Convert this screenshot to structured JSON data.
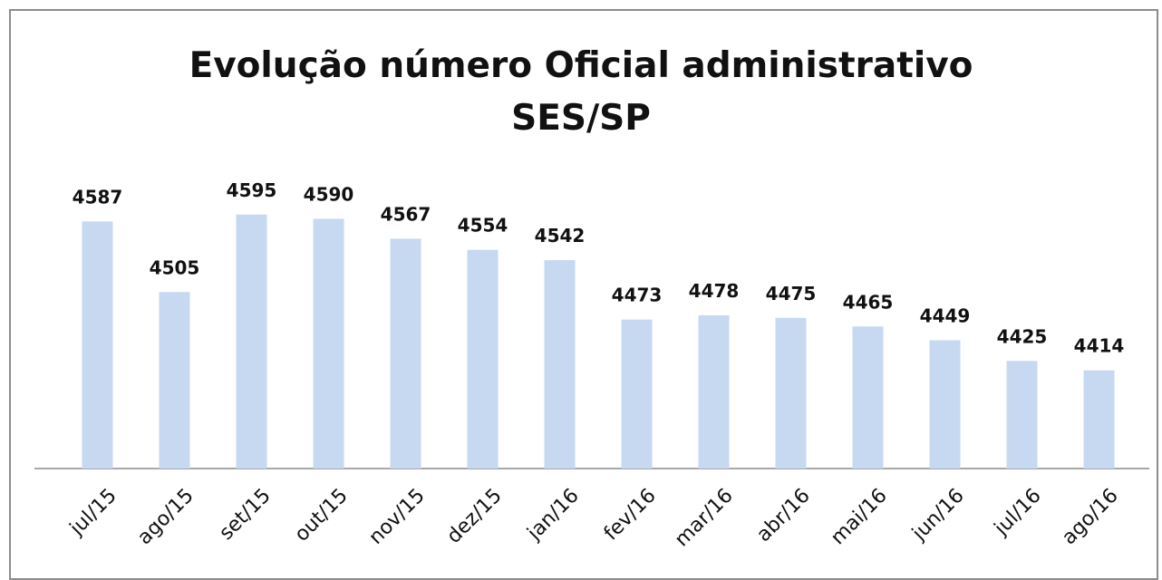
{
  "chart_data": {
    "type": "bar",
    "title": "Evolução número Oficial administrativo SES/SP",
    "categories": [
      "jul/15",
      "ago/15",
      "set/15",
      "out/15",
      "nov/15",
      "dez/15",
      "jan/16",
      "fev/16",
      "mar/16",
      "abr/16",
      "mai/16",
      "jun/16",
      "jul/16",
      "ago/16"
    ],
    "values": [
      4587,
      4505,
      4595,
      4590,
      4567,
      4554,
      4542,
      4473,
      4478,
      4475,
      4465,
      4449,
      4425,
      4414
    ],
    "color": "#c6d9f1",
    "ylim": [
      4300,
      4650
    ]
  }
}
